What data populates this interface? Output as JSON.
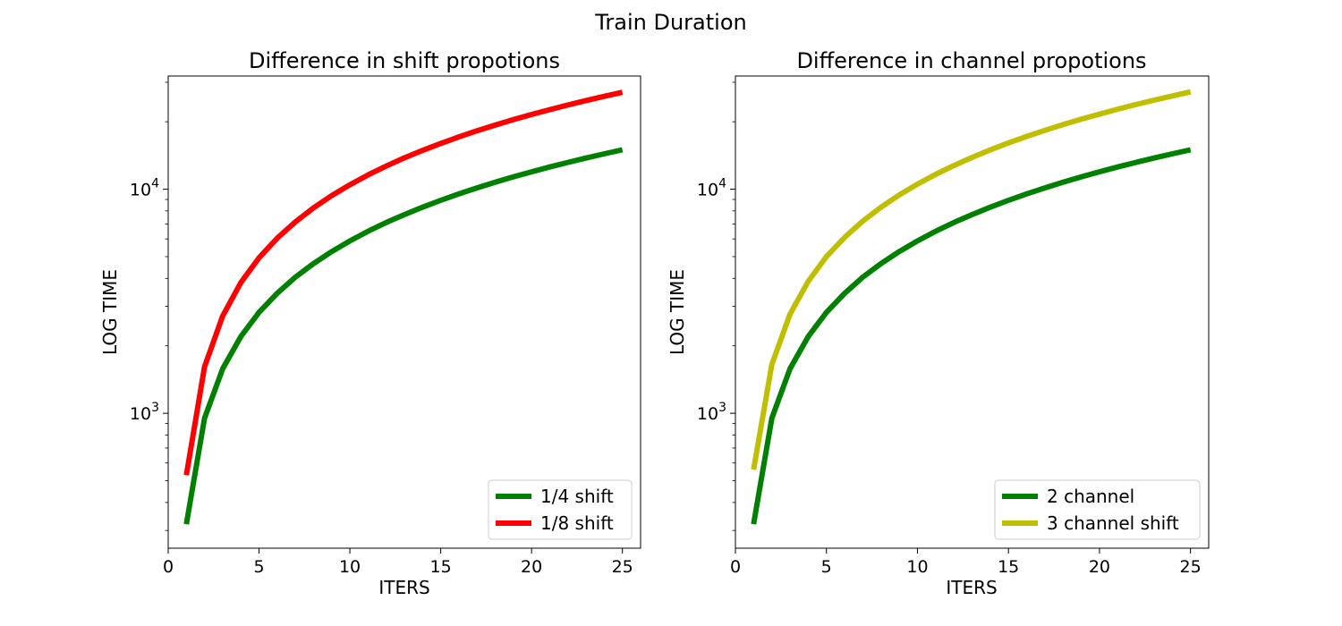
{
  "suptitle": "Train Duration",
  "chart_data": [
    {
      "type": "line",
      "title": "Difference in shift propotions",
      "xlabel": "ITERS",
      "ylabel": "LOG TIME",
      "yscale": "log",
      "xlim": [
        0,
        26
      ],
      "ylim": [
        250,
        32000
      ],
      "xticks": [
        0,
        5,
        10,
        15,
        20,
        25
      ],
      "yticks": [
        1000,
        10000
      ],
      "ytick_base": "10",
      "ytick_exps": [
        "3",
        "4"
      ],
      "grid": false,
      "legend_position": "lower-right",
      "x": [
        1,
        2,
        3,
        4,
        5,
        6,
        7,
        8,
        9,
        10,
        11,
        12,
        13,
        14,
        15,
        16,
        17,
        18,
        19,
        20,
        21,
        22,
        23,
        24,
        25
      ],
      "series": [
        {
          "name": "1/4 shift",
          "color": "#008000",
          "values": [
            320,
            950,
            1580,
            2200,
            2820,
            3430,
            4050,
            4660,
            5270,
            5880,
            6490,
            7100,
            7700,
            8310,
            8920,
            9530,
            10140,
            10740,
            11350,
            11960,
            12570,
            13170,
            13780,
            14390,
            15000
          ]
        },
        {
          "name": "1/8 shift",
          "color": "#ff0000",
          "values": [
            530,
            1610,
            2720,
            3830,
            4940,
            6040,
            7150,
            8260,
            9370,
            10470,
            11580,
            12690,
            13800,
            14900,
            16010,
            17120,
            18230,
            19330,
            20440,
            21550,
            22660,
            23760,
            24870,
            25980,
            27080
          ]
        }
      ]
    },
    {
      "type": "line",
      "title": "Difference in channel propotions",
      "xlabel": "ITERS",
      "ylabel": "LOG TIME",
      "yscale": "log",
      "xlim": [
        0,
        26
      ],
      "ylim": [
        250,
        32000
      ],
      "xticks": [
        0,
        5,
        10,
        15,
        20,
        25
      ],
      "yticks": [
        1000,
        10000
      ],
      "ytick_base": "10",
      "ytick_exps": [
        "3",
        "4"
      ],
      "grid": false,
      "legend_position": "lower-right",
      "x": [
        1,
        2,
        3,
        4,
        5,
        6,
        7,
        8,
        9,
        10,
        11,
        12,
        13,
        14,
        15,
        16,
        17,
        18,
        19,
        20,
        21,
        22,
        23,
        24,
        25
      ],
      "series": [
        {
          "name": "2 channel",
          "color": "#008000",
          "values": [
            320,
            950,
            1580,
            2200,
            2820,
            3430,
            4050,
            4660,
            5270,
            5880,
            6490,
            7100,
            7700,
            8310,
            8920,
            9530,
            10140,
            10740,
            11350,
            11960,
            12570,
            13170,
            13780,
            14390,
            15000
          ]
        },
        {
          "name": "3 channel shift",
          "color": "#bfbf00",
          "values": [
            560,
            1650,
            2770,
            3880,
            5000,
            6100,
            7210,
            8320,
            9430,
            10540,
            11650,
            12760,
            13870,
            14980,
            16090,
            17200,
            18310,
            19420,
            20530,
            21640,
            22750,
            23860,
            24970,
            26080,
            27200
          ]
        }
      ]
    }
  ]
}
